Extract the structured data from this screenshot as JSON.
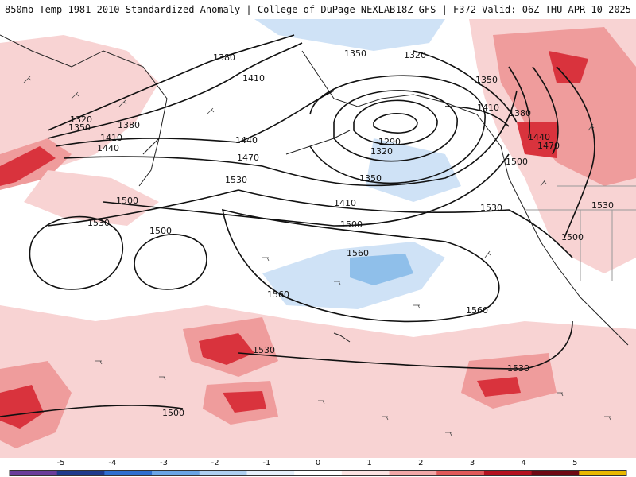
{
  "header": {
    "left_title": "850mb Temp 1981-2010 Standardized Anomaly | College of DuPage NEXLAB",
    "right_title": "18Z GFS | F372 Valid: 06Z THU APR 10 2025"
  },
  "contour_labels": [
    {
      "id": "h1380-a",
      "text": "1380"
    },
    {
      "id": "h1410-a",
      "text": "1410"
    },
    {
      "id": "h1320-a",
      "text": "1320"
    },
    {
      "id": "h1350-a",
      "text": "1350"
    },
    {
      "id": "h1380-b",
      "text": "1380"
    },
    {
      "id": "h1410-b",
      "text": "1410"
    },
    {
      "id": "h1440-a",
      "text": "1440"
    },
    {
      "id": "h1440-b",
      "text": "1440"
    },
    {
      "id": "h1470-a",
      "text": "1470"
    },
    {
      "id": "h1530-a",
      "text": "1530"
    },
    {
      "id": "h1500-a",
      "text": "1500"
    },
    {
      "id": "h1530-b",
      "text": "1530"
    },
    {
      "id": "h1500-b",
      "text": "1500"
    },
    {
      "id": "h1350-b",
      "text": "1350"
    },
    {
      "id": "h1320-b",
      "text": "1320"
    },
    {
      "id": "h1290",
      "text": "1290"
    },
    {
      "id": "h1320-c",
      "text": "1320"
    },
    {
      "id": "h1350-c",
      "text": "1350"
    },
    {
      "id": "h1410-c",
      "text": "1410"
    },
    {
      "id": "h1500-c",
      "text": "1500"
    },
    {
      "id": "h1560-a",
      "text": "1560"
    },
    {
      "id": "h1560-b",
      "text": "1560"
    },
    {
      "id": "h1560-c",
      "text": "1560"
    },
    {
      "id": "h1530-c",
      "text": "1530"
    },
    {
      "id": "h1530-d",
      "text": "1530"
    },
    {
      "id": "h1530-e",
      "text": "1530"
    },
    {
      "id": "h1350-d",
      "text": "1350"
    },
    {
      "id": "h1410-d",
      "text": "1410"
    },
    {
      "id": "h1380-c",
      "text": "1380"
    },
    {
      "id": "h1440-c",
      "text": "1440"
    },
    {
      "id": "h1470-b",
      "text": "1470"
    },
    {
      "id": "h1500-d",
      "text": "1500"
    },
    {
      "id": "h1530-f",
      "text": "1530"
    },
    {
      "id": "h1500-e",
      "text": "1500"
    },
    {
      "id": "h1500-f",
      "text": "1500"
    }
  ],
  "colorbar": {
    "ticks": [
      "-5",
      "-4",
      "-3",
      "-2",
      "-1",
      "0",
      "1",
      "2",
      "3",
      "4",
      "5"
    ],
    "range": [
      -6,
      6
    ],
    "colors": [
      "#6a3d9a",
      "#1f3b8c",
      "#2e6fd0",
      "#6aa5e6",
      "#aecff0",
      "#e6f0fb",
      "#ffffff",
      "#fbe3e3",
      "#f2a8a8",
      "#e05a5a",
      "#b3121f",
      "#6e0a14",
      "#e8b800"
    ]
  },
  "colors": {
    "warm_light": "#f8d3d3",
    "warm_mid": "#ef9c9c",
    "warm_strong": "#d9333d",
    "warm_deep": "#8e0f1c",
    "cold_light": "#cfe2f6",
    "cold_mid": "#8fbfea",
    "contour": "#111111",
    "coast": "#222222"
  }
}
